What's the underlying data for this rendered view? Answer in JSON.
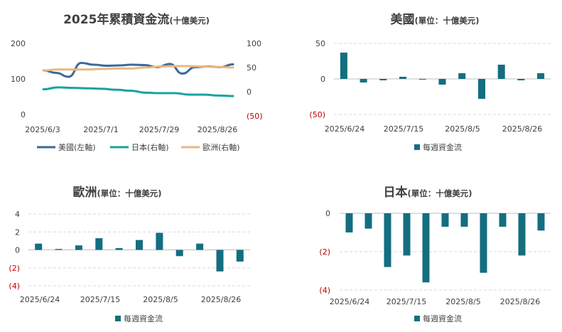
{
  "chart_data": [
    {
      "type": "line",
      "title": "2025年累積資金流",
      "subtitle": "(十億美元)",
      "x_ticks": [
        "2025/6/3",
        "2025/7/1",
        "2025/7/29",
        "2025/8/26"
      ],
      "y_left_ticks": [
        "200",
        "100",
        "0"
      ],
      "y_right_ticks": [
        "100",
        "50",
        "0",
        "(50)"
      ],
      "ylim_left": [
        0,
        200
      ],
      "ylim_right": [
        -50,
        100
      ],
      "legend": "bottom",
      "grid": false,
      "series": [
        {
          "name": "美國(左軸)",
          "axis": "left",
          "color": "#3a6a9a",
          "values": [
            124,
            117,
            106,
            145,
            140,
            137,
            138,
            140,
            139,
            133,
            142,
            115,
            133,
            135,
            133,
            141
          ]
        },
        {
          "name": "日本(右軸)",
          "axis": "right",
          "color": "#17a3a0",
          "values": [
            5,
            9,
            8,
            7,
            6,
            4,
            2,
            -2,
            -3,
            -3,
            -6,
            -6,
            -8,
            -9
          ]
        },
        {
          "name": "歐洲(右軸)",
          "axis": "right",
          "color": "#eab77f",
          "values": [
            44,
            46,
            46,
            46,
            47,
            48,
            48,
            50,
            52,
            53,
            53,
            52,
            51,
            50
          ]
        }
      ]
    },
    {
      "type": "bar",
      "title": "美國",
      "subtitle": "(單位：十億美元)",
      "x_ticks": [
        "2025/6/24",
        "2025/7/15",
        "2025/8/5",
        "2025/8/26"
      ],
      "y_ticks": [
        "50",
        "0",
        "(50)"
      ],
      "ylim": [
        -50,
        50
      ],
      "legend": "bottom",
      "grid": true,
      "color": "#136e80",
      "series": [
        {
          "name": "每週資金流",
          "values": [
            37,
            -5,
            -2,
            3,
            -1,
            -8,
            8,
            -28,
            20,
            -2,
            8
          ]
        }
      ]
    },
    {
      "type": "bar",
      "title": "歐洲",
      "subtitle": "(單位：十億美元)",
      "x_ticks": [
        "2025/6/24",
        "2025/7/15",
        "2025/8/5",
        "2025/8/26"
      ],
      "y_ticks": [
        "4",
        "2",
        "0",
        "(2)",
        "(4)"
      ],
      "ylim": [
        -4,
        4
      ],
      "legend": "bottom",
      "grid": true,
      "color": "#136e80",
      "series": [
        {
          "name": "每週資金流",
          "values": [
            0.7,
            0.1,
            0.5,
            1.3,
            0.2,
            1.1,
            1.9,
            -0.7,
            0.7,
            -2.4,
            -1.3
          ]
        }
      ]
    },
    {
      "type": "bar",
      "title": "日本",
      "subtitle": "(單位：十億美元)",
      "x_ticks": [
        "2025/6/24",
        "2025/7/15",
        "2025/8/5",
        "2025/8/26"
      ],
      "y_ticks": [
        "0",
        "(2)",
        "(4)"
      ],
      "ylim": [
        -4,
        0
      ],
      "legend": "bottom",
      "grid": true,
      "color": "#136e80",
      "series": [
        {
          "name": "每週資金流",
          "values": [
            -1.0,
            -0.8,
            -2.8,
            -2.2,
            -3.6,
            -0.7,
            -0.7,
            -3.1,
            -0.7,
            -2.2,
            -0.9
          ]
        }
      ]
    }
  ]
}
